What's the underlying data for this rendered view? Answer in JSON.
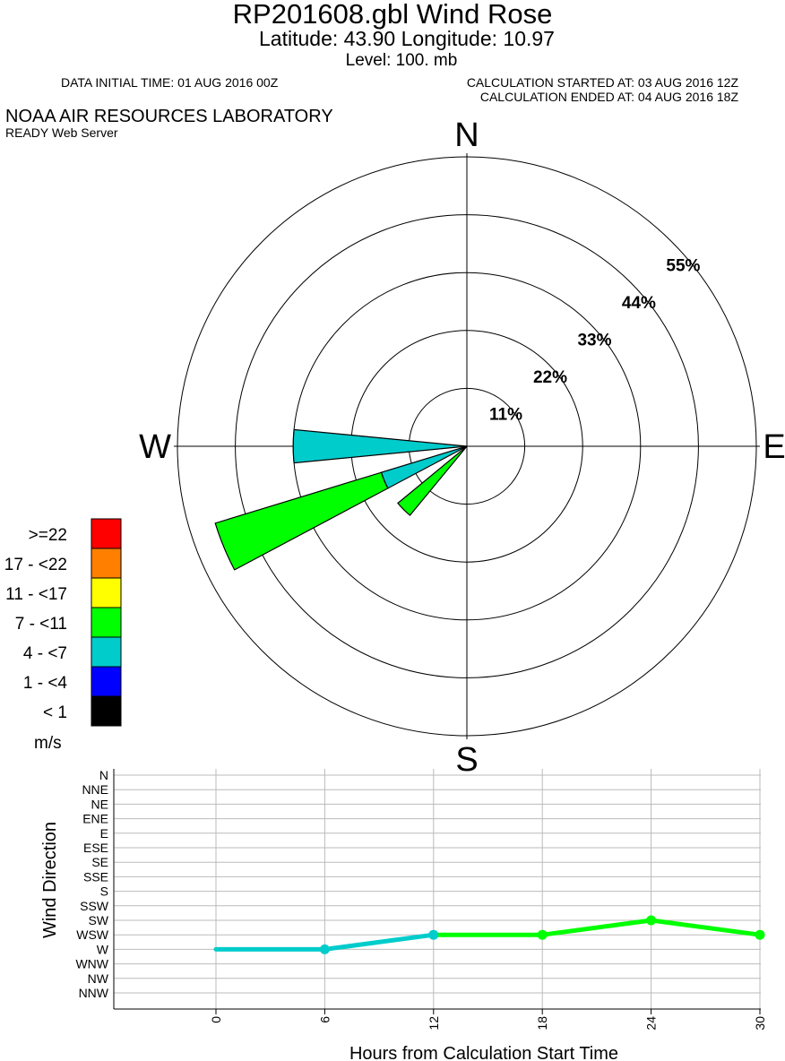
{
  "header": {
    "title": "RP201608.gbl Wind Rose",
    "latlon": "Latitude: 43.90 Longitude:  10.97",
    "level": "Level:  100. mb",
    "data_initial_time": "DATA INITIAL TIME: 01 AUG 2016 00Z",
    "calc_started": "CALCULATION STARTED AT: 03 AUG 2016 12Z",
    "calc_ended": "CALCULATION ENDED AT: 04 AUG 2016 18Z",
    "org": "NOAA AIR RESOURCES LABORATORY",
    "org_sub": "READY Web Server"
  },
  "chart_data": [
    {
      "type": "wind-rose",
      "compass_labels": {
        "north": "N",
        "east": "E",
        "south": "S",
        "west": "W"
      },
      "ring_labels": [
        "11%",
        "22%",
        "33%",
        "44%",
        "55%"
      ],
      "ring_values": [
        11,
        22,
        33,
        44,
        55
      ],
      "sectors": [
        {
          "direction": "W",
          "bands": [
            {
              "speed_class": "4 - <7",
              "percent": 33
            }
          ]
        },
        {
          "direction": "WSW",
          "bands": [
            {
              "speed_class": "4 - <7",
              "percent": 17
            },
            {
              "speed_class": "7 - <11",
              "percent": 33
            }
          ]
        },
        {
          "direction": "SW",
          "bands": [
            {
              "speed_class": "7 - <11",
              "percent": 17
            }
          ]
        }
      ],
      "legend": {
        "unit": "m/s",
        "classes": [
          {
            "label": ">=22",
            "color": "#ff0000"
          },
          {
            "label": "17 - <22",
            "color": "#ff8000"
          },
          {
            "label": "11 - <17",
            "color": "#ffff00"
          },
          {
            "label": "7 - <11",
            "color": "#00ff00"
          },
          {
            "label": "4 - <7",
            "color": "#00cccc"
          },
          {
            "label": "1 - <4",
            "color": "#0000ff"
          },
          {
            "label": "< 1",
            "color": "#000000"
          }
        ]
      }
    },
    {
      "type": "line",
      "xlabel": "Hours from Calculation Start Time",
      "ylabel": "Wind Direction",
      "x_ticks": [
        "0",
        "6",
        "12",
        "18",
        "24",
        "30"
      ],
      "y_categories": [
        "N",
        "NNE",
        "NE",
        "ENE",
        "E",
        "ESE",
        "SE",
        "SSE",
        "S",
        "SSW",
        "SW",
        "WSW",
        "W",
        "WNW",
        "NW",
        "NNW"
      ],
      "points": [
        {
          "x": 0,
          "y": "W"
        },
        {
          "x": 6,
          "y": "W",
          "marker": true
        },
        {
          "x": 12,
          "y": "WSW",
          "marker": true
        },
        {
          "x": 18,
          "y": "WSW",
          "marker": true
        },
        {
          "x": 24,
          "y": "SW",
          "marker": true
        },
        {
          "x": 30,
          "y": "WSW",
          "marker": true
        }
      ],
      "segment_colors": [
        "#00cccc",
        "#00cccc",
        "#00ff00",
        "#00ff00",
        "#00ff00"
      ]
    }
  ]
}
